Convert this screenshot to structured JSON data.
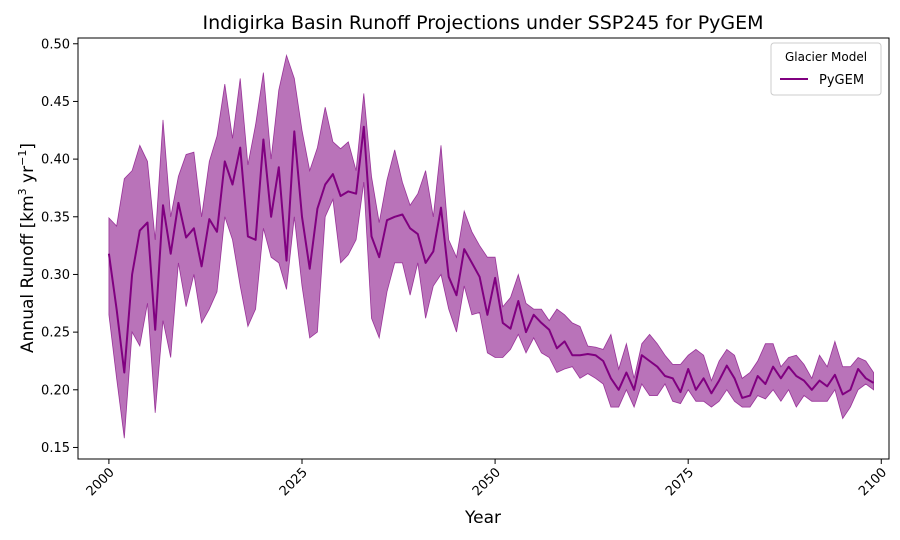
{
  "chart_data": {
    "type": "line",
    "title": "Indigirka Basin Runoff Projections under SSP245 for PyGEM",
    "xlabel": "Year",
    "ylabel": "Annual Runoff [km³ yr⁻¹]",
    "ylabel_main": "Annual Runoff [km",
    "ylabel_sup1": "3",
    "ylabel_mid": " yr",
    "ylabel_sup2": "−1",
    "ylabel_end": "]",
    "xlim": [
      1996,
      2101
    ],
    "ylim": [
      0.14,
      0.505
    ],
    "xticks": [
      2000,
      2025,
      2050,
      2075,
      2100
    ],
    "yticks": [
      0.15,
      0.2,
      0.25,
      0.3,
      0.35,
      0.4,
      0.45,
      0.5
    ],
    "grid": false,
    "legend": {
      "title": "Glacier Model",
      "placement": "top-right"
    },
    "colors": {
      "line": "#800080",
      "band": "#800080"
    },
    "series": [
      {
        "name": "PyGEM",
        "x": [
          2000,
          2001,
          2002,
          2003,
          2004,
          2005,
          2006,
          2007,
          2008,
          2009,
          2010,
          2011,
          2012,
          2013,
          2014,
          2015,
          2016,
          2017,
          2018,
          2019,
          2020,
          2021,
          2022,
          2023,
          2024,
          2025,
          2026,
          2027,
          2028,
          2029,
          2030,
          2031,
          2032,
          2033,
          2034,
          2035,
          2036,
          2037,
          2038,
          2039,
          2040,
          2041,
          2042,
          2043,
          2044,
          2045,
          2046,
          2047,
          2048,
          2049,
          2050,
          2051,
          2052,
          2053,
          2054,
          2055,
          2056,
          2057,
          2058,
          2059,
          2060,
          2061,
          2062,
          2063,
          2064,
          2065,
          2066,
          2067,
          2068,
          2069,
          2070,
          2071,
          2072,
          2073,
          2074,
          2075,
          2076,
          2077,
          2078,
          2079,
          2080,
          2081,
          2082,
          2083,
          2084,
          2085,
          2086,
          2087,
          2088,
          2089,
          2090,
          2091,
          2092,
          2093,
          2094,
          2095,
          2096,
          2097,
          2098,
          2099
        ],
        "values": [
          0.318,
          0.27,
          0.215,
          0.3,
          0.338,
          0.345,
          0.252,
          0.36,
          0.318,
          0.362,
          0.332,
          0.34,
          0.307,
          0.348,
          0.337,
          0.398,
          0.378,
          0.41,
          0.333,
          0.33,
          0.417,
          0.35,
          0.393,
          0.312,
          0.424,
          0.35,
          0.305,
          0.357,
          0.378,
          0.387,
          0.368,
          0.372,
          0.37,
          0.428,
          0.333,
          0.315,
          0.347,
          0.35,
          0.352,
          0.34,
          0.335,
          0.31,
          0.32,
          0.358,
          0.298,
          0.282,
          0.322,
          0.31,
          0.298,
          0.265,
          0.297,
          0.258,
          0.253,
          0.277,
          0.25,
          0.265,
          0.258,
          0.252,
          0.236,
          0.242,
          0.23,
          0.23,
          0.231,
          0.23,
          0.225,
          0.21,
          0.2,
          0.215,
          0.2,
          0.23,
          0.225,
          0.22,
          0.212,
          0.21,
          0.198,
          0.218,
          0.2,
          0.21,
          0.197,
          0.208,
          0.221,
          0.21,
          0.193,
          0.195,
          0.212,
          0.205,
          0.22,
          0.21,
          0.22,
          0.212,
          0.208,
          0.2,
          0.208,
          0.203,
          0.213,
          0.196,
          0.2,
          0.218,
          0.21,
          0.206
        ],
        "lower": [
          0.265,
          0.21,
          0.158,
          0.25,
          0.238,
          0.275,
          0.18,
          0.26,
          0.228,
          0.31,
          0.272,
          0.3,
          0.258,
          0.27,
          0.285,
          0.35,
          0.33,
          0.29,
          0.255,
          0.27,
          0.34,
          0.315,
          0.31,
          0.287,
          0.35,
          0.29,
          0.245,
          0.25,
          0.35,
          0.365,
          0.31,
          0.317,
          0.33,
          0.38,
          0.262,
          0.245,
          0.285,
          0.31,
          0.31,
          0.282,
          0.31,
          0.262,
          0.29,
          0.3,
          0.27,
          0.25,
          0.29,
          0.265,
          0.267,
          0.232,
          0.228,
          0.228,
          0.235,
          0.248,
          0.232,
          0.245,
          0.232,
          0.228,
          0.215,
          0.218,
          0.22,
          0.21,
          0.214,
          0.21,
          0.205,
          0.185,
          0.185,
          0.2,
          0.185,
          0.205,
          0.195,
          0.195,
          0.205,
          0.19,
          0.188,
          0.2,
          0.19,
          0.19,
          0.185,
          0.19,
          0.2,
          0.19,
          0.185,
          0.185,
          0.195,
          0.192,
          0.2,
          0.19,
          0.2,
          0.185,
          0.195,
          0.19,
          0.19,
          0.19,
          0.2,
          0.175,
          0.185,
          0.2,
          0.205,
          0.2
        ],
        "upper": [
          0.349,
          0.342,
          0.383,
          0.39,
          0.412,
          0.398,
          0.33,
          0.434,
          0.35,
          0.385,
          0.404,
          0.406,
          0.35,
          0.398,
          0.42,
          0.465,
          0.418,
          0.47,
          0.395,
          0.43,
          0.475,
          0.4,
          0.46,
          0.49,
          0.47,
          0.425,
          0.39,
          0.41,
          0.445,
          0.415,
          0.409,
          0.415,
          0.39,
          0.457,
          0.385,
          0.345,
          0.382,
          0.408,
          0.38,
          0.36,
          0.37,
          0.39,
          0.35,
          0.412,
          0.33,
          0.315,
          0.355,
          0.337,
          0.325,
          0.315,
          0.315,
          0.272,
          0.28,
          0.3,
          0.275,
          0.27,
          0.27,
          0.26,
          0.27,
          0.265,
          0.258,
          0.255,
          0.238,
          0.237,
          0.235,
          0.248,
          0.218,
          0.24,
          0.21,
          0.24,
          0.248,
          0.24,
          0.23,
          0.222,
          0.222,
          0.23,
          0.235,
          0.23,
          0.208,
          0.225,
          0.235,
          0.23,
          0.21,
          0.215,
          0.225,
          0.24,
          0.24,
          0.22,
          0.228,
          0.23,
          0.222,
          0.21,
          0.23,
          0.22,
          0.242,
          0.22,
          0.22,
          0.228,
          0.225,
          0.215
        ]
      }
    ]
  }
}
